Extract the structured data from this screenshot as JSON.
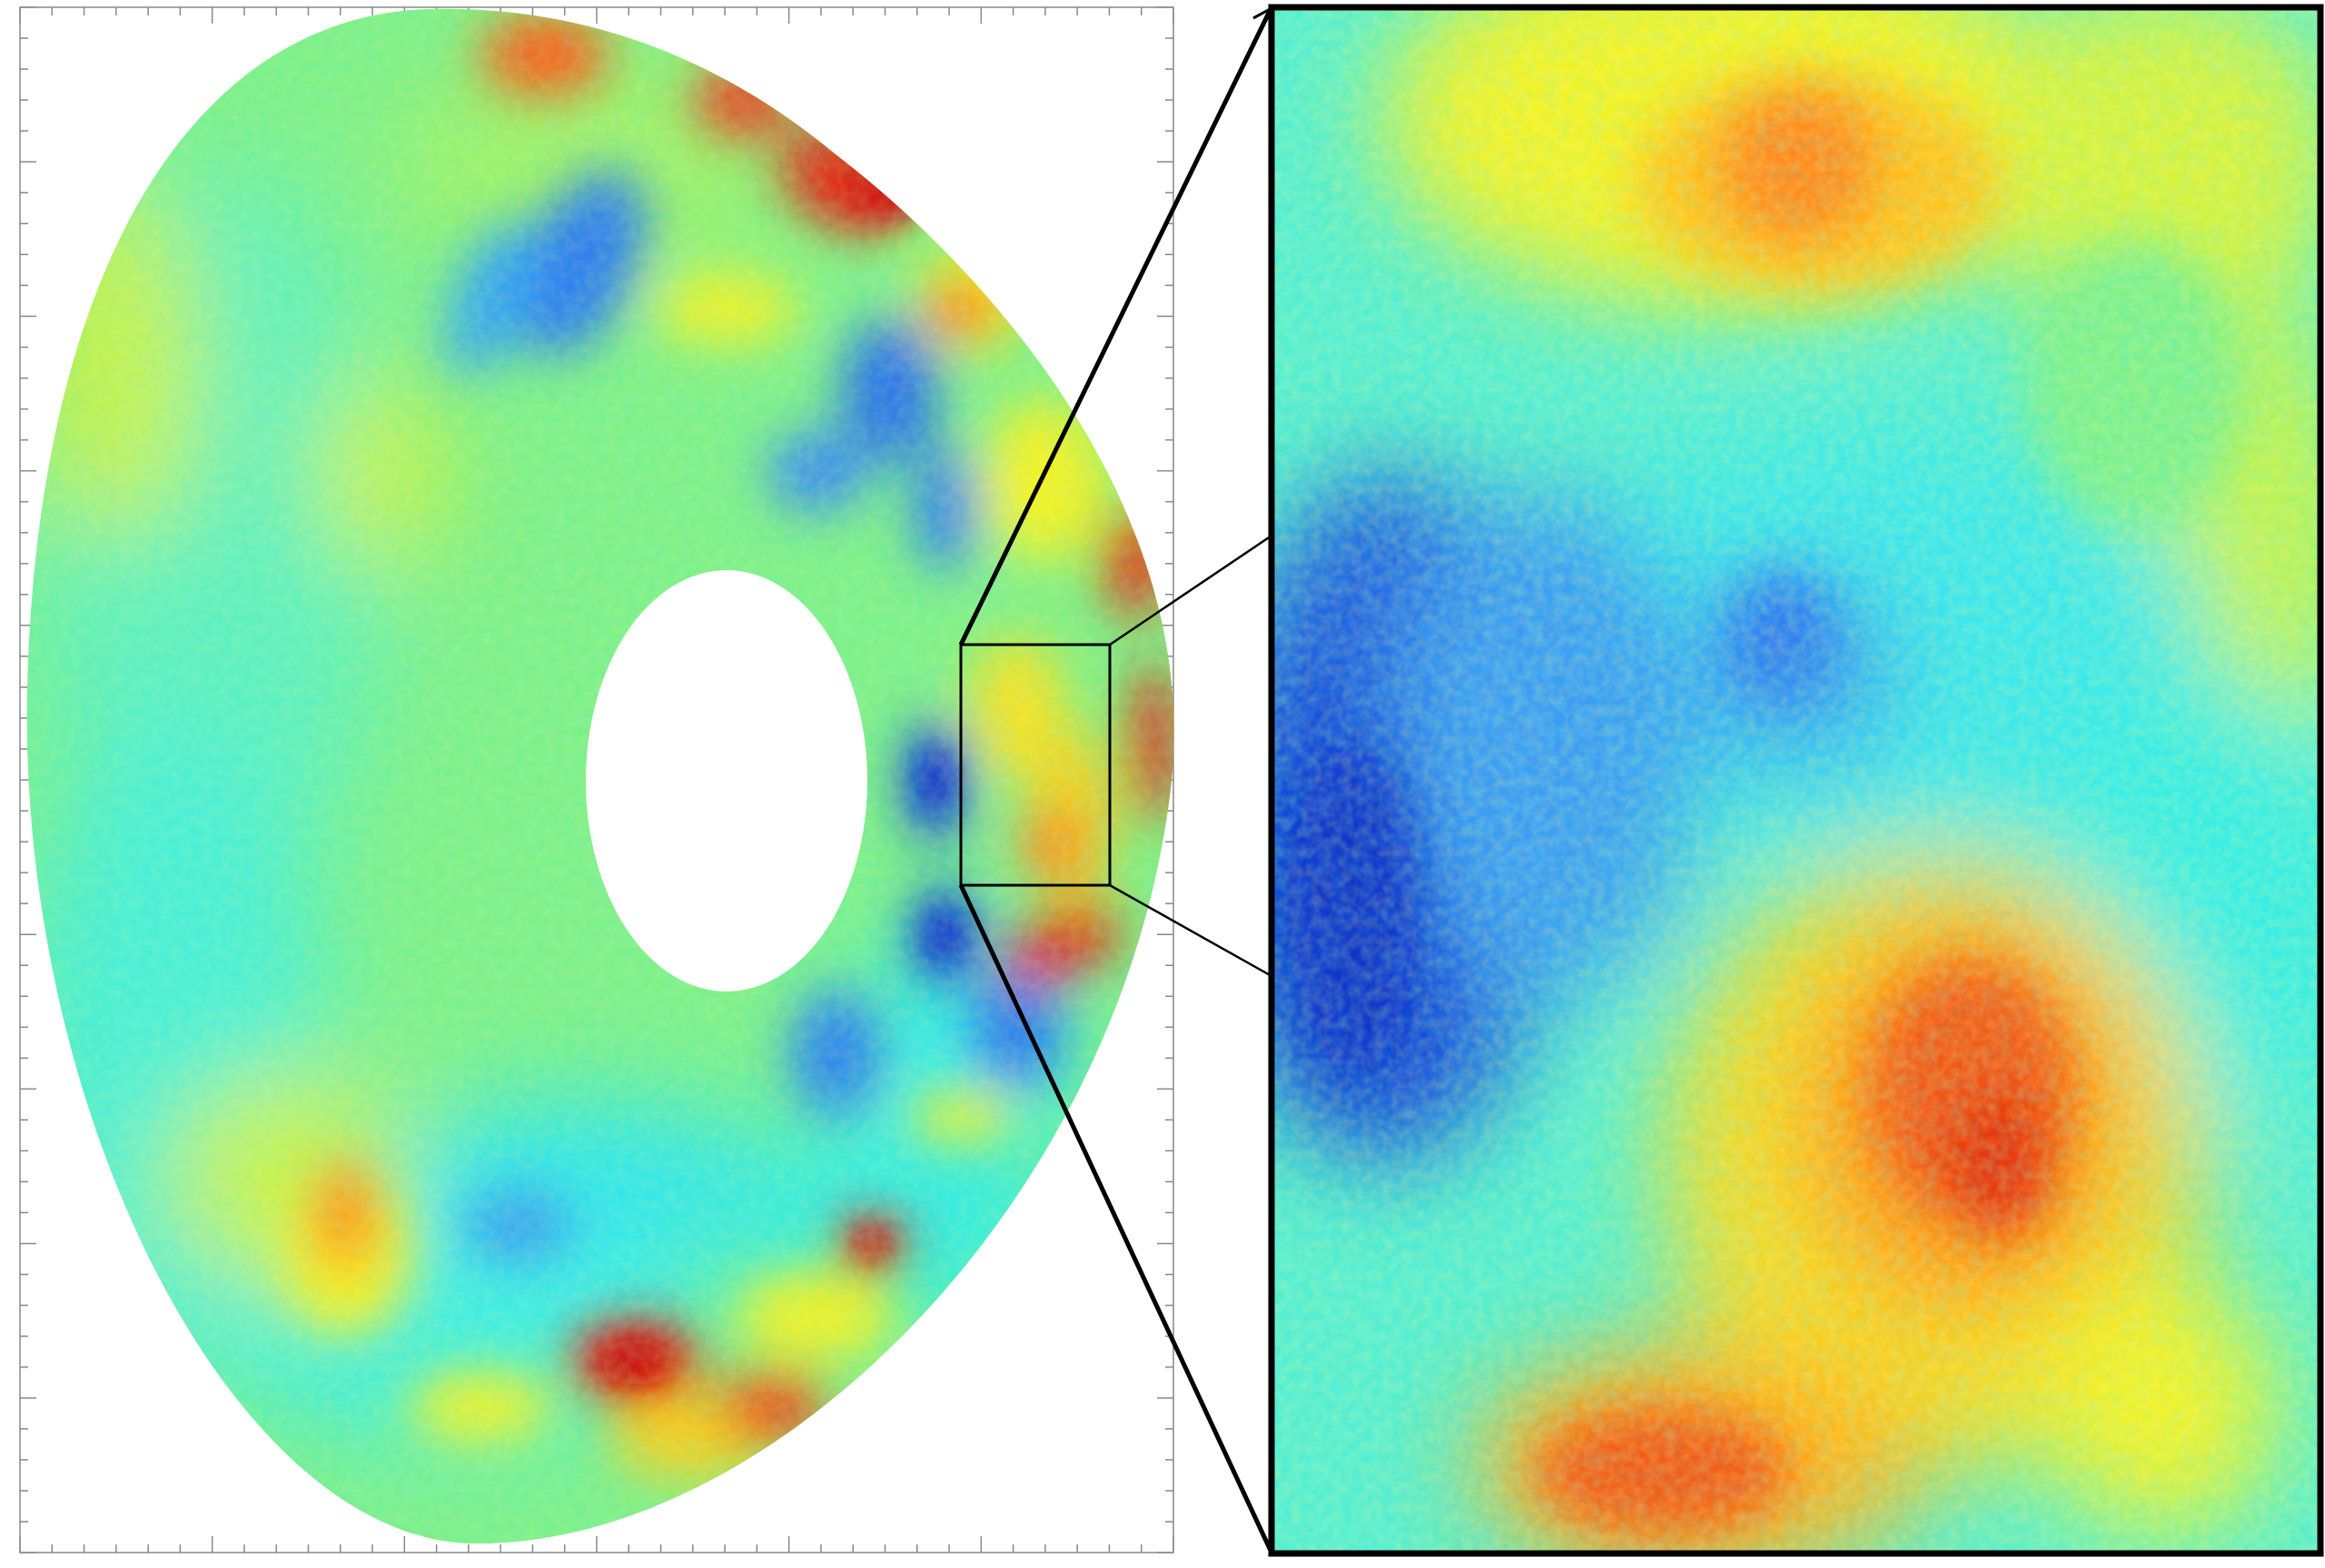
{
  "figure": {
    "left_panel": {
      "kind": "tokamak-poloidal-cross-section",
      "colormap": "jet",
      "background": "#7ef08a",
      "colors": {
        "deep_blue": "#0a3bd6",
        "blue": "#2f7df0",
        "cyan": "#2ff0ee",
        "green": "#7ef08a",
        "yellow": "#f2f227",
        "orange": "#ff8a1c",
        "red": "#e81d10"
      },
      "zoom_box": "inset-region"
    },
    "right_panel": {
      "kind": "zoom-inset",
      "colormap": "jet",
      "border_color": "#000000"
    }
  }
}
